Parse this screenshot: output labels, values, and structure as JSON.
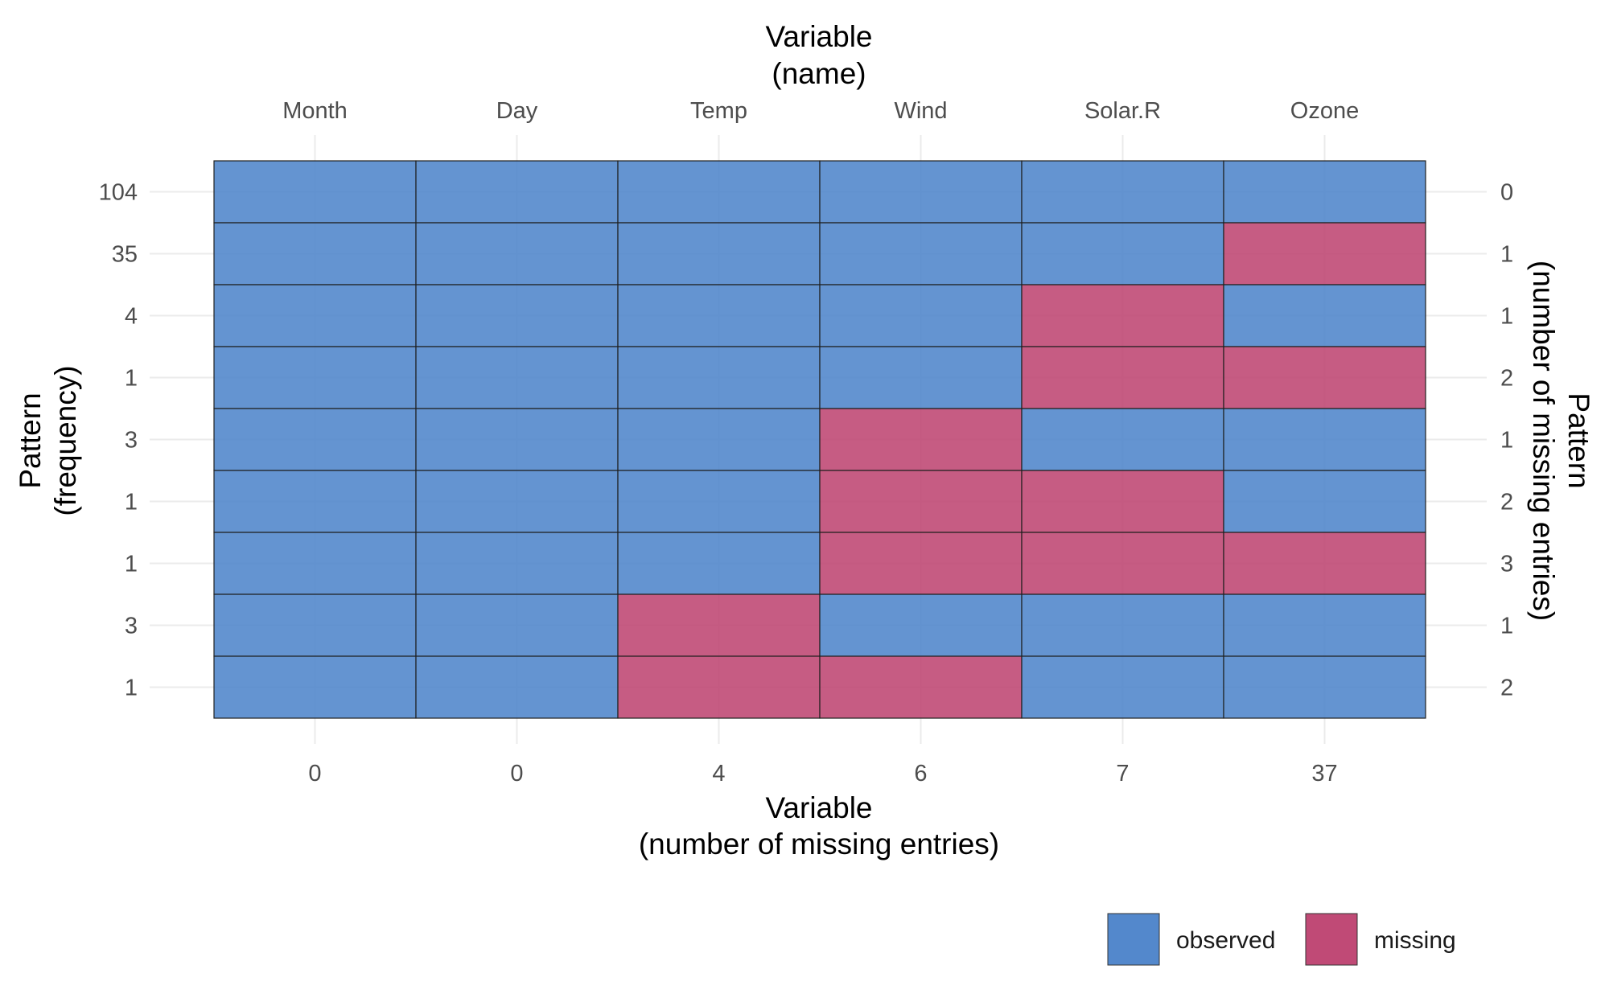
{
  "chart_data": {
    "type": "heatmap",
    "title_top": [
      "Variable",
      "(name)"
    ],
    "title_bottom": [
      "Variable",
      "(number of missing entries)"
    ],
    "title_left": [
      "Pattern",
      "(frequency)"
    ],
    "title_right": [
      "Pattern",
      "(number of missing entries)"
    ],
    "variables": [
      "Month",
      "Day",
      "Temp",
      "Wind",
      "Solar.R",
      "Ozone"
    ],
    "variable_missing_counts": [
      "0",
      "0",
      "4",
      "6",
      "7",
      "37"
    ],
    "pattern_frequencies": [
      "104",
      "35",
      "4",
      "1",
      "3",
      "1",
      "1",
      "3",
      "1"
    ],
    "pattern_missing_counts": [
      "0",
      "1",
      "1",
      "2",
      "1",
      "2",
      "3",
      "1",
      "2"
    ],
    "patterns": [
      [
        1,
        1,
        1,
        1,
        1,
        1
      ],
      [
        1,
        1,
        1,
        1,
        1,
        0
      ],
      [
        1,
        1,
        1,
        1,
        0,
        1
      ],
      [
        1,
        1,
        1,
        1,
        0,
        0
      ],
      [
        1,
        1,
        1,
        0,
        1,
        1
      ],
      [
        1,
        1,
        1,
        0,
        0,
        1
      ],
      [
        1,
        1,
        1,
        0,
        0,
        0
      ],
      [
        1,
        1,
        0,
        1,
        1,
        1
      ],
      [
        1,
        1,
        0,
        0,
        1,
        1
      ]
    ],
    "legend": {
      "position": "bottom-right",
      "items": [
        {
          "label": "observed",
          "color": "#5388CC",
          "value": 1
        },
        {
          "label": "missing",
          "color": "#C04A76",
          "value": 0
        }
      ]
    },
    "grid": true
  }
}
